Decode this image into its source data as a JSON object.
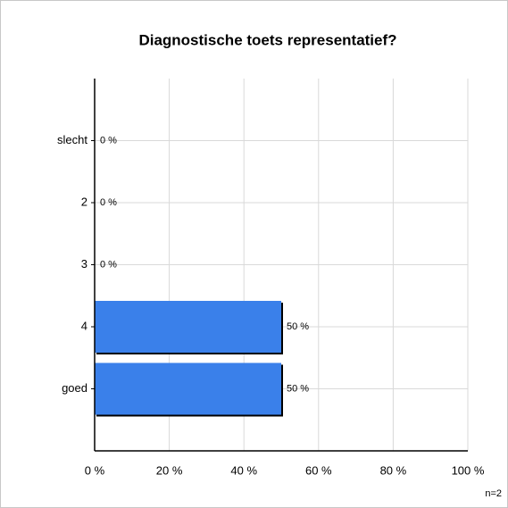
{
  "chart_data": {
    "type": "bar",
    "orientation": "horizontal",
    "title": "Diagnostische toets representatief?",
    "categories": [
      "slecht",
      "2",
      "3",
      "4",
      "goed"
    ],
    "values": [
      0,
      0,
      0,
      50,
      50
    ],
    "value_labels": [
      "0 %",
      "0 %",
      "0 %",
      "50 %",
      "50 %"
    ],
    "color": "#3a80ea",
    "xlim": [
      0,
      100
    ],
    "xticks": [
      {
        "value": 0,
        "label": "0 %"
      },
      {
        "value": 20,
        "label": "20 %"
      },
      {
        "value": 40,
        "label": "40 %"
      },
      {
        "value": 60,
        "label": "60 %"
      },
      {
        "value": 80,
        "label": "80 %"
      },
      {
        "value": 100,
        "label": "100 %"
      }
    ],
    "grid": true,
    "annotation": "n=2"
  }
}
